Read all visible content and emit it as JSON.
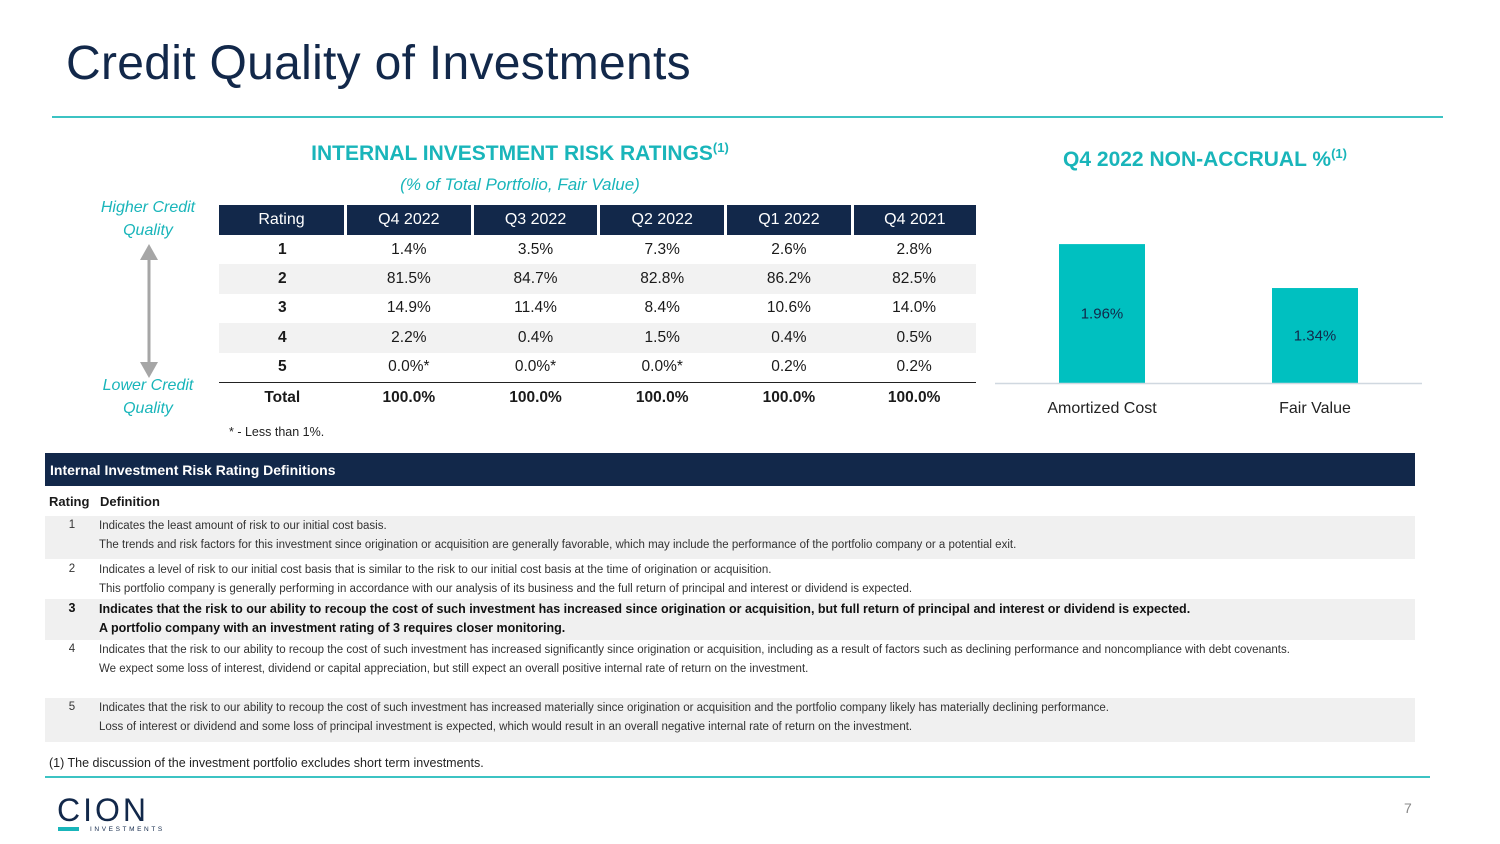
{
  "page": {
    "title": "Credit Quality of Investments",
    "page_number": "7",
    "footnote": "(1)   The discussion of the investment portfolio excludes short term investments."
  },
  "ratings": {
    "heading": "INTERNAL INVESTMENT RISK RATINGS",
    "heading_sup": "(1)",
    "subheading": "(% of Total Portfolio, Fair Value)",
    "higher_label": "Higher Credit Quality",
    "lower_label": "Lower Credit Quality",
    "columns": [
      "Rating",
      "Q4 2022",
      "Q3 2022",
      "Q2 2022",
      "Q1 2022",
      "Q4 2021"
    ],
    "rows": [
      {
        "rating": "1",
        "values": [
          "1.4%",
          "3.5%",
          "7.3%",
          "2.6%",
          "2.8%"
        ]
      },
      {
        "rating": "2",
        "values": [
          "81.5%",
          "84.7%",
          "82.8%",
          "86.2%",
          "82.5%"
        ]
      },
      {
        "rating": "3",
        "values": [
          "14.9%",
          "11.4%",
          "8.4%",
          "10.6%",
          "14.0%"
        ]
      },
      {
        "rating": "4",
        "values": [
          "2.2%",
          "0.4%",
          "1.5%",
          "0.4%",
          "0.5%"
        ]
      },
      {
        "rating": "5",
        "values": [
          "0.0%*",
          "0.0%*",
          "0.0%*",
          "0.2%",
          "0.2%"
        ]
      }
    ],
    "total": {
      "label": "Total",
      "values": [
        "100.0%",
        "100.0%",
        "100.0%",
        "100.0%",
        "100.0%"
      ]
    },
    "footnote": "* - Less than 1%."
  },
  "nonaccrual": {
    "heading": "Q4 2022 NON-ACCRUAL %",
    "heading_sup": "(1)"
  },
  "chart_data": {
    "type": "bar",
    "title": "Q4 2022 NON-ACCRUAL %",
    "categories": [
      "Amortized Cost",
      "Fair Value"
    ],
    "values": [
      1.96,
      1.34
    ],
    "labels": [
      "1.96%",
      "1.34%"
    ],
    "ylim": [
      0,
      2.3
    ],
    "grid": false,
    "bar_color": "#00c0c0"
  },
  "definitions": {
    "header": "Internal Investment Risk Rating Definitions",
    "col_rating": "Rating",
    "col_definition": "Definition",
    "items": [
      {
        "rating": "1",
        "lines": [
          "Indicates the least amount of risk to our initial cost basis.",
          "The trends and risk factors for this investment since origination or acquisition are generally favorable, which may include the performance of the portfolio company or a potential exit."
        ]
      },
      {
        "rating": "2",
        "lines": [
          "Indicates a level of risk to our initial cost basis that is similar to the risk to our initial cost basis at the time of origination or acquisition.",
          "This portfolio company is generally performing in accordance with our analysis of its business and the full return of principal and interest or dividend is expected."
        ]
      },
      {
        "rating": "3",
        "lines": [
          "Indicates that the risk to our ability to recoup the cost of such investment has increased since origination or acquisition, but full return of principal and interest or dividend is expected.",
          "A portfolio company with an investment rating of 3 requires closer monitoring."
        ]
      },
      {
        "rating": "4",
        "lines": [
          "Indicates that the risk to our ability to recoup the cost of such investment has increased significantly since origination or acquisition, including as a result of factors such as declining performance and noncompliance with debt covenants.",
          "We expect some loss of interest, dividend or capital appreciation, but still expect an overall positive internal rate of return on the investment."
        ]
      },
      {
        "rating": "5",
        "lines": [
          "Indicates that the risk to our ability to recoup the cost of such investment has increased materially since origination or acquisition and the portfolio company likely has materially declining performance.",
          "Loss of interest or dividend and some loss of principal investment is expected, which would result in an overall negative internal rate of return on the investment."
        ]
      }
    ]
  },
  "logo": {
    "name": "CION",
    "tagline": "INVESTMENTS",
    "color": "#12284a",
    "accent": "#19b5ba"
  }
}
